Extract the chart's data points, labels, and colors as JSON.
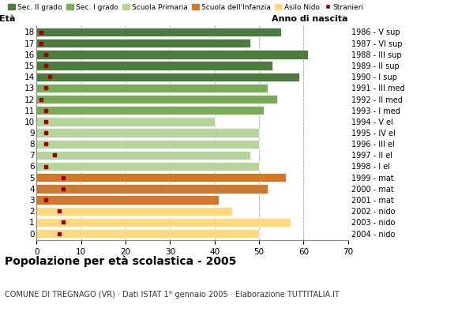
{
  "ages": [
    18,
    17,
    16,
    15,
    14,
    13,
    12,
    11,
    10,
    9,
    8,
    7,
    6,
    5,
    4,
    3,
    2,
    1,
    0
  ],
  "bar_values": [
    55,
    48,
    61,
    53,
    59,
    52,
    54,
    51,
    40,
    50,
    50,
    48,
    50,
    56,
    52,
    41,
    44,
    57,
    50
  ],
  "stranieri": [
    1,
    1,
    2,
    2,
    3,
    2,
    1,
    2,
    2,
    2,
    2,
    4,
    2,
    6,
    6,
    2,
    5,
    6,
    5
  ],
  "year_labels": [
    "1986 - V sup",
    "1987 - VI sup",
    "1988 - III sup",
    "1989 - II sup",
    "1990 - I sup",
    "1991 - III med",
    "1992 - II med",
    "1993 - I med",
    "1994 - V el",
    "1995 - IV el",
    "1996 - III el",
    "1997 - II el",
    "1998 - I el",
    "1999 - mat",
    "2000 - mat",
    "2001 - mat",
    "2002 - nido",
    "2003 - nido",
    "2004 - nido"
  ],
  "school_types": {
    "sec2": {
      "ages": [
        18,
        17,
        16,
        15,
        14
      ],
      "color": "#4e7a3f"
    },
    "sec1": {
      "ages": [
        13,
        12,
        11
      ],
      "color": "#7aab5a"
    },
    "primaria": {
      "ages": [
        10,
        9,
        8,
        7,
        6
      ],
      "color": "#b8d49e"
    },
    "infanzia": {
      "ages": [
        5,
        4,
        3
      ],
      "color": "#cc7a2f"
    },
    "nido": {
      "ages": [
        2,
        1,
        0
      ],
      "color": "#ffd980"
    }
  },
  "legend_labels": [
    "Sec. II grado",
    "Sec. I grado",
    "Scuola Primaria",
    "Scuola dell'Infanzia",
    "Asilo Nido",
    "Stranieri"
  ],
  "legend_colors": [
    "#4e7a3f",
    "#7aab5a",
    "#b8d49e",
    "#cc7a2f",
    "#ffd980",
    "#990000"
  ],
  "title": "Popolazione per età scolastica - 2005",
  "subtitle": "COMUNE DI TREGNAGO (VR) · Dati ISTAT 1° gennaio 2005 · Elaborazione TUTTITALIA.IT",
  "label_eta": "Età",
  "label_anno": "Anno di nascita",
  "stranieri_color": "#990000",
  "bar_height": 0.8,
  "xlim": [
    0,
    70
  ],
  "xticks": [
    0,
    10,
    20,
    30,
    40,
    50,
    60,
    70
  ],
  "background_color": "#ffffff",
  "grid_color": "#b0b0b0"
}
